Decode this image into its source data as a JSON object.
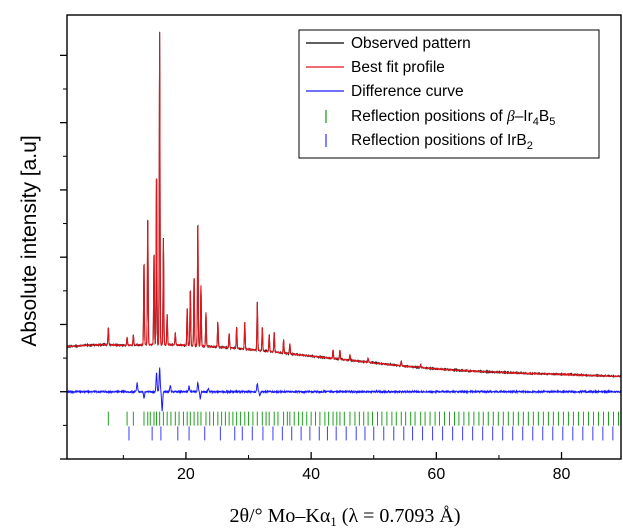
{
  "chart_data": {
    "type": "line",
    "title": "",
    "xlabel": {
      "main": "2θ/° Mo–Kα",
      "sub": "1",
      "tail": " (λ = 0.7093 Å)"
    },
    "ylabel": "Absolute intensity [a.u]",
    "xlim": [
      1,
      89.5
    ],
    "ylim": [
      -1.0,
      5.6
    ],
    "xticks": [
      20,
      40,
      60,
      80
    ],
    "xtick_labels": [
      "20",
      "40",
      "60",
      "80"
    ],
    "y_tick_labels_shown": false,
    "grid": false,
    "legend_position": "top-right",
    "colors": {
      "observed": "#000000",
      "fit": "#e8151b",
      "difference": "#1a1aff",
      "beta_ir4b5": "#1fa01f",
      "irb2": "#3b3bff"
    },
    "legend": [
      {
        "key": "observed",
        "label": "Observed pattern",
        "style": "line"
      },
      {
        "key": "fit",
        "label": "Best fit profile",
        "style": "line"
      },
      {
        "key": "difference",
        "label": "Difference curve",
        "style": "line"
      },
      {
        "key": "beta_ir4b5",
        "label_parts": [
          "Reflection positions of ",
          "β",
          "–Ir",
          "4",
          "B",
          "5"
        ],
        "style": "tick"
      },
      {
        "key": "irb2",
        "label_parts": [
          "Reflection positions of IrB",
          "2"
        ],
        "style": "tick"
      }
    ],
    "series": [
      {
        "name": "Observed pattern",
        "background": [
          [
            1,
            0.67
          ],
          [
            4,
            0.69
          ],
          [
            7,
            0.7
          ],
          [
            10,
            0.69
          ],
          [
            14,
            0.7
          ],
          [
            18,
            0.7
          ],
          [
            22,
            0.68
          ],
          [
            26,
            0.66
          ],
          [
            30,
            0.63
          ],
          [
            35,
            0.58
          ],
          [
            40,
            0.53
          ],
          [
            45,
            0.48
          ],
          [
            50,
            0.43
          ],
          [
            55,
            0.38
          ],
          [
            60,
            0.34
          ],
          [
            65,
            0.31
          ],
          [
            70,
            0.29
          ],
          [
            75,
            0.27
          ],
          [
            80,
            0.26
          ],
          [
            85,
            0.24
          ],
          [
            89.5,
            0.23
          ]
        ],
        "peaks": [
          [
            7.6,
            0.25
          ],
          [
            10.6,
            0.12
          ],
          [
            11.6,
            0.15
          ],
          [
            13.3,
            1.25
          ],
          [
            13.9,
            1.95
          ],
          [
            14.9,
            1.4
          ],
          [
            15.3,
            2.6
          ],
          [
            15.8,
            4.65
          ],
          [
            16.4,
            1.58
          ],
          [
            17.0,
            0.45
          ],
          [
            18.3,
            0.18
          ],
          [
            20.2,
            0.55
          ],
          [
            20.7,
            0.85
          ],
          [
            21.3,
            1.05
          ],
          [
            21.9,
            1.88
          ],
          [
            22.4,
            0.9
          ],
          [
            23.2,
            0.5
          ],
          [
            25.1,
            0.38
          ],
          [
            26.9,
            0.22
          ],
          [
            28.1,
            0.32
          ],
          [
            29.4,
            0.4
          ],
          [
            31.4,
            0.72
          ],
          [
            32.2,
            0.35
          ],
          [
            33.3,
            0.25
          ],
          [
            34.1,
            0.3
          ],
          [
            35.6,
            0.2
          ],
          [
            36.6,
            0.15
          ],
          [
            43.5,
            0.13
          ],
          [
            44.6,
            0.14
          ],
          [
            46.2,
            0.08
          ],
          [
            49.1,
            0.06
          ],
          [
            54.4,
            0.07
          ],
          [
            57.5,
            0.04
          ]
        ]
      },
      {
        "name": "Best fit profile",
        "follows": "Observed pattern"
      },
      {
        "name": "Difference curve",
        "baseline": 0,
        "features": [
          [
            12.2,
            0.13
          ],
          [
            13.3,
            -0.1
          ],
          [
            15.3,
            0.28
          ],
          [
            15.8,
            0.35
          ],
          [
            16.2,
            -0.28
          ],
          [
            17.5,
            0.1
          ],
          [
            20.5,
            0.08
          ],
          [
            21.9,
            0.14
          ],
          [
            22.3,
            -0.1
          ],
          [
            23.6,
            0.05
          ],
          [
            31.4,
            0.12
          ],
          [
            31.8,
            -0.06
          ]
        ]
      }
    ],
    "reflections": {
      "beta_ir4b5": {
        "row_y": -0.4,
        "positions": [
          7.6,
          10.6,
          11.6,
          13.3,
          13.9,
          14.3,
          14.9,
          15.3,
          15.8,
          16.4,
          17.0,
          17.6,
          18.3,
          18.9,
          19.6,
          20.2,
          20.7,
          21.3,
          21.9,
          22.4,
          23.2,
          23.8,
          24.4,
          25.1,
          25.7,
          26.3,
          26.9,
          27.5,
          28.1,
          28.7,
          29.4,
          30.0,
          30.7,
          31.4,
          32.2,
          32.8,
          33.3,
          34.1,
          34.7,
          35.6,
          36.2,
          36.6,
          37.3,
          38.0,
          38.6,
          39.3,
          40.0,
          40.7,
          41.4,
          42.2,
          42.8,
          43.5,
          44.1,
          44.6,
          45.3,
          46.2,
          47.0,
          47.7,
          48.4,
          49.1,
          49.8,
          50.6,
          51.3,
          52.1,
          52.9,
          53.6,
          54.4,
          55.1,
          55.9,
          56.6,
          57.5,
          58.2,
          59.0,
          59.8,
          60.5,
          61.3,
          62.1,
          62.9,
          63.6,
          64.4,
          65.2,
          66.0,
          66.8,
          67.5,
          68.3,
          69.1,
          69.9,
          70.7,
          71.5,
          72.3,
          73.1,
          73.9,
          74.7,
          75.5,
          76.3,
          77.1,
          77.9,
          78.7,
          79.5,
          80.3,
          81.1,
          81.9,
          82.7,
          83.5,
          84.3,
          85.1,
          85.9,
          86.7,
          87.5,
          88.3,
          89.1
        ]
      },
      "irb2": {
        "row_y": -0.62,
        "positions": [
          10.9,
          14.6,
          16.0,
          18.7,
          20.5,
          23.0,
          25.5,
          27.8,
          29.0,
          30.6,
          32.3,
          33.9,
          35.4,
          36.9,
          38.4,
          39.8,
          41.3,
          42.6,
          44.0,
          45.6,
          47.2,
          48.6,
          50.0,
          51.6,
          53.2,
          54.8,
          56.2,
          57.8,
          59.4,
          61.0,
          62.6,
          64.2,
          65.8,
          67.4,
          69.0,
          70.6,
          72.2,
          73.8,
          75.4,
          77.0,
          78.6,
          80.2,
          81.8,
          83.4,
          85.0,
          86.6,
          88.2
        ]
      }
    }
  }
}
